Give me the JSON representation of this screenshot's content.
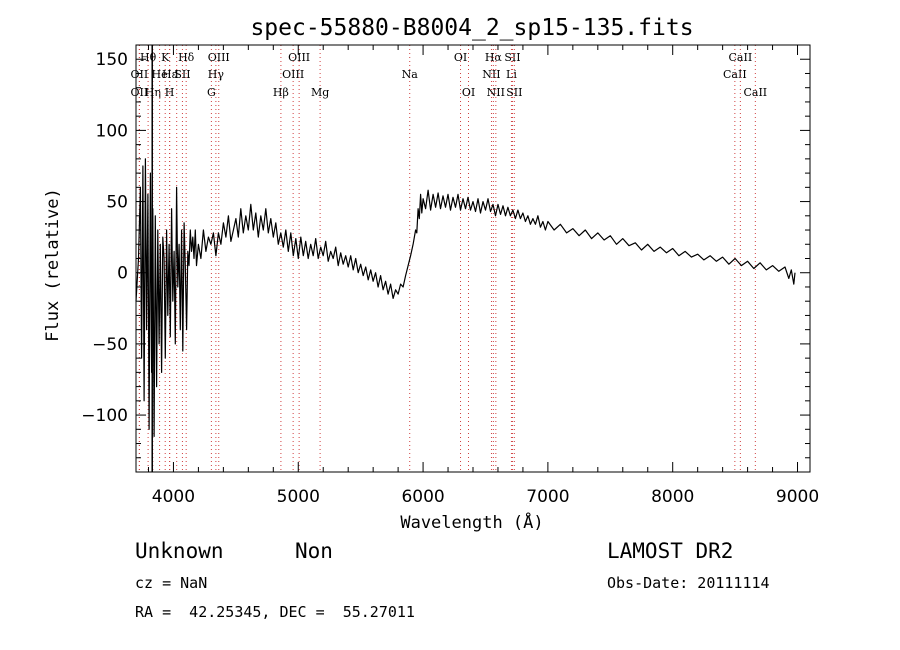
{
  "chart_data": {
    "type": "line",
    "title": "spec-55880-B8004_2_sp15-135.fits",
    "xlabel": "Wavelength (Å)",
    "ylabel": "Flux (relative)",
    "xlim": [
      3700,
      9100
    ],
    "ylim": [
      -140,
      160
    ],
    "x_ticks": [
      4000,
      5000,
      6000,
      7000,
      8000,
      9000
    ],
    "y_ticks": [
      -100,
      -50,
      0,
      50,
      100,
      150
    ],
    "grid": false,
    "series": [
      {
        "color": "#000000",
        "points": [
          [
            3700,
            -20
          ],
          [
            3720,
            10
          ],
          [
            3735,
            60
          ],
          [
            3745,
            -60
          ],
          [
            3755,
            75
          ],
          [
            3765,
            -90
          ],
          [
            3775,
            80
          ],
          [
            3785,
            -40
          ],
          [
            3795,
            55
          ],
          [
            3805,
            -110
          ],
          [
            3815,
            70
          ],
          [
            3825,
            -70
          ],
          [
            3835,
            45
          ],
          [
            3845,
            -115
          ],
          [
            3855,
            40
          ],
          [
            3865,
            -80
          ],
          [
            3875,
            30
          ],
          [
            3885,
            -50
          ],
          [
            3895,
            20
          ],
          [
            3905,
            -70
          ],
          [
            3915,
            25
          ],
          [
            3925,
            10
          ],
          [
            3935,
            -60
          ],
          [
            3945,
            30
          ],
          [
            3955,
            -30
          ],
          [
            3965,
            20
          ],
          [
            3975,
            -45
          ],
          [
            3985,
            45
          ],
          [
            3995,
            -20
          ],
          [
            4005,
            15
          ],
          [
            4015,
            -50
          ],
          [
            4025,
            60
          ],
          [
            4035,
            -10
          ],
          [
            4045,
            20
          ],
          [
            4055,
            -40
          ],
          [
            4065,
            30
          ],
          [
            4075,
            -55
          ],
          [
            4085,
            35
          ],
          [
            4095,
            5
          ],
          [
            4105,
            -40
          ],
          [
            4115,
            15
          ],
          [
            4125,
            5
          ],
          [
            4135,
            30
          ],
          [
            4145,
            15
          ],
          [
            4155,
            25
          ],
          [
            4165,
            10
          ],
          [
            4175,
            30
          ],
          [
            4185,
            5
          ],
          [
            4200,
            20
          ],
          [
            4220,
            10
          ],
          [
            4240,
            30
          ],
          [
            4260,
            15
          ],
          [
            4280,
            25
          ],
          [
            4300,
            20
          ],
          [
            4320,
            28
          ],
          [
            4340,
            12
          ],
          [
            4360,
            28
          ],
          [
            4380,
            20
          ],
          [
            4400,
            35
          ],
          [
            4420,
            25
          ],
          [
            4440,
            40
          ],
          [
            4460,
            22
          ],
          [
            4480,
            30
          ],
          [
            4500,
            38
          ],
          [
            4520,
            25
          ],
          [
            4540,
            45
          ],
          [
            4560,
            28
          ],
          [
            4580,
            40
          ],
          [
            4600,
            30
          ],
          [
            4620,
            48
          ],
          [
            4640,
            30
          ],
          [
            4660,
            42
          ],
          [
            4680,
            25
          ],
          [
            4700,
            40
          ],
          [
            4720,
            30
          ],
          [
            4740,
            45
          ],
          [
            4760,
            28
          ],
          [
            4780,
            38
          ],
          [
            4800,
            25
          ],
          [
            4820,
            35
          ],
          [
            4840,
            20
          ],
          [
            4860,
            28
          ],
          [
            4880,
            18
          ],
          [
            4900,
            30
          ],
          [
            4920,
            15
          ],
          [
            4940,
            28
          ],
          [
            4960,
            12
          ],
          [
            4980,
            24
          ],
          [
            5000,
            10
          ],
          [
            5020,
            25
          ],
          [
            5040,
            12
          ],
          [
            5060,
            22
          ],
          [
            5080,
            10
          ],
          [
            5100,
            20
          ],
          [
            5120,
            12
          ],
          [
            5140,
            24
          ],
          [
            5160,
            10
          ],
          [
            5180,
            18
          ],
          [
            5200,
            12
          ],
          [
            5220,
            22
          ],
          [
            5240,
            8
          ],
          [
            5260,
            15
          ],
          [
            5280,
            10
          ],
          [
            5300,
            18
          ],
          [
            5320,
            5
          ],
          [
            5340,
            14
          ],
          [
            5360,
            6
          ],
          [
            5380,
            12
          ],
          [
            5400,
            4
          ],
          [
            5420,
            12
          ],
          [
            5440,
            2
          ],
          [
            5460,
            10
          ],
          [
            5480,
            0
          ],
          [
            5500,
            6
          ],
          [
            5520,
            -2
          ],
          [
            5540,
            4
          ],
          [
            5560,
            -5
          ],
          [
            5580,
            2
          ],
          [
            5600,
            -6
          ],
          [
            5620,
            0
          ],
          [
            5640,
            -10
          ],
          [
            5660,
            -2
          ],
          [
            5680,
            -12
          ],
          [
            5700,
            -6
          ],
          [
            5720,
            -15
          ],
          [
            5740,
            -8
          ],
          [
            5760,
            -18
          ],
          [
            5780,
            -12
          ],
          [
            5800,
            -15
          ],
          [
            5820,
            -8
          ],
          [
            5840,
            -10
          ],
          [
            5860,
            -2
          ],
          [
            5880,
            5
          ],
          [
            5900,
            12
          ],
          [
            5920,
            20
          ],
          [
            5940,
            30
          ],
          [
            5950,
            28
          ],
          [
            5960,
            45
          ],
          [
            5970,
            38
          ],
          [
            5980,
            55
          ],
          [
            5990,
            42
          ],
          [
            6000,
            52
          ],
          [
            6020,
            45
          ],
          [
            6040,
            58
          ],
          [
            6060,
            44
          ],
          [
            6080,
            55
          ],
          [
            6100,
            46
          ],
          [
            6120,
            56
          ],
          [
            6140,
            45
          ],
          [
            6160,
            54
          ],
          [
            6180,
            46
          ],
          [
            6200,
            55
          ],
          [
            6220,
            44
          ],
          [
            6240,
            53
          ],
          [
            6260,
            46
          ],
          [
            6280,
            55
          ],
          [
            6300,
            44
          ],
          [
            6320,
            52
          ],
          [
            6340,
            45
          ],
          [
            6360,
            53
          ],
          [
            6380,
            44
          ],
          [
            6400,
            50
          ],
          [
            6420,
            43
          ],
          [
            6440,
            52
          ],
          [
            6460,
            42
          ],
          [
            6480,
            50
          ],
          [
            6500,
            44
          ],
          [
            6520,
            52
          ],
          [
            6540,
            43
          ],
          [
            6560,
            48
          ],
          [
            6580,
            40
          ],
          [
            6600,
            48
          ],
          [
            6620,
            41
          ],
          [
            6640,
            47
          ],
          [
            6660,
            40
          ],
          [
            6680,
            46
          ],
          [
            6700,
            40
          ],
          [
            6720,
            44
          ],
          [
            6740,
            38
          ],
          [
            6760,
            44
          ],
          [
            6780,
            38
          ],
          [
            6800,
            42
          ],
          [
            6820,
            36
          ],
          [
            6840,
            40
          ],
          [
            6860,
            34
          ],
          [
            6880,
            38
          ],
          [
            6900,
            34
          ],
          [
            6920,
            40
          ],
          [
            6940,
            32
          ],
          [
            6960,
            36
          ],
          [
            6980,
            30
          ],
          [
            7000,
            36
          ],
          [
            7050,
            30
          ],
          [
            7100,
            34
          ],
          [
            7150,
            28
          ],
          [
            7200,
            31
          ],
          [
            7250,
            26
          ],
          [
            7300,
            30
          ],
          [
            7350,
            24
          ],
          [
            7400,
            28
          ],
          [
            7450,
            23
          ],
          [
            7500,
            26
          ],
          [
            7550,
            20
          ],
          [
            7600,
            24
          ],
          [
            7650,
            19
          ],
          [
            7700,
            21
          ],
          [
            7750,
            16
          ],
          [
            7800,
            20
          ],
          [
            7850,
            15
          ],
          [
            7900,
            18
          ],
          [
            7950,
            14
          ],
          [
            8000,
            17
          ],
          [
            8050,
            12
          ],
          [
            8100,
            15
          ],
          [
            8150,
            11
          ],
          [
            8200,
            13
          ],
          [
            8250,
            9
          ],
          [
            8300,
            12
          ],
          [
            8350,
            8
          ],
          [
            8400,
            11
          ],
          [
            8450,
            6
          ],
          [
            8500,
            10
          ],
          [
            8550,
            5
          ],
          [
            8600,
            8
          ],
          [
            8650,
            3
          ],
          [
            8700,
            7
          ],
          [
            8750,
            2
          ],
          [
            8800,
            5
          ],
          [
            8850,
            1
          ],
          [
            8900,
            4
          ],
          [
            8930,
            -4
          ],
          [
            8950,
            2
          ],
          [
            8970,
            -8
          ],
          [
            8980,
            0
          ]
        ]
      }
    ],
    "spike_x": 3830,
    "line_markers": [
      {
        "x": 3797,
        "label": "Hθ",
        "row": 0
      },
      {
        "x": 3727,
        "label": "OII",
        "row": 1
      },
      {
        "x": 3727,
        "label": "OII",
        "row": 2
      },
      {
        "x": 3835,
        "label": "Hη",
        "row": 2
      },
      {
        "x": 3889,
        "label": "He",
        "row": 1
      },
      {
        "x": 3934,
        "label": "K",
        "row": 0
      },
      {
        "x": 3969,
        "label": "H",
        "row": 2
      },
      {
        "x": 3970,
        "label": "Hε",
        "row": 1
      },
      {
        "x": 4026,
        "label": "I",
        "row": 1
      },
      {
        "x": 4072,
        "label": "SII",
        "row": 1
      },
      {
        "x": 4102,
        "label": "Hδ",
        "row": 0
      },
      {
        "x": 4304,
        "label": "G",
        "row": 2
      },
      {
        "x": 4340,
        "label": "Hγ",
        "row": 1
      },
      {
        "x": 4363,
        "label": "OIII",
        "row": 0
      },
      {
        "x": 4861,
        "label": "Hβ",
        "row": 2
      },
      {
        "x": 4959,
        "label": "OIII",
        "row": 1
      },
      {
        "x": 5007,
        "label": "OIII",
        "row": 0
      },
      {
        "x": 5175,
        "label": "Mg",
        "row": 2
      },
      {
        "x": 5893,
        "label": "Na",
        "row": 1
      },
      {
        "x": 6300,
        "label": "OI",
        "row": 0
      },
      {
        "x": 6364,
        "label": "OI",
        "row": 2
      },
      {
        "x": 6548,
        "label": "NII",
        "row": 1
      },
      {
        "x": 6563,
        "label": "Hα",
        "row": 0
      },
      {
        "x": 6583,
        "label": "NII",
        "row": 2
      },
      {
        "x": 6708,
        "label": "Li",
        "row": 1
      },
      {
        "x": 6716,
        "label": "SII",
        "row": 0
      },
      {
        "x": 6731,
        "label": "SII",
        "row": 2
      },
      {
        "x": 8498,
        "label": "CaII",
        "row": 1
      },
      {
        "x": 8542,
        "label": "CaII",
        "row": 0
      },
      {
        "x": 8662,
        "label": "CaII",
        "row": 2
      }
    ]
  },
  "footer": {
    "classification": "Unknown",
    "subclass": "Non",
    "survey": "LAMOST DR2",
    "cz": "cz = NaN",
    "obs_date": "Obs-Date: 20111114",
    "coords": "RA =  42.25345, DEC =  55.27011"
  }
}
